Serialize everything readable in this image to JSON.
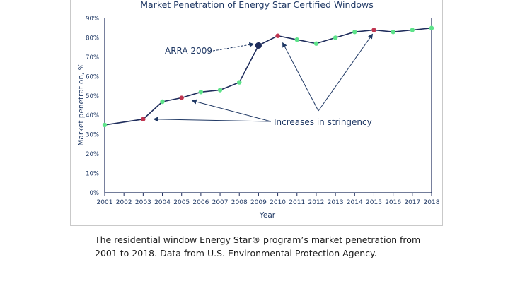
{
  "chart_data": {
    "type": "line",
    "title": "Market Penetration of Energy Star Certified Windows",
    "xlabel": "Year",
    "ylabel": "Market penetration, %",
    "ylim": [
      0,
      90
    ],
    "yticks": [
      "0%",
      "10%",
      "20%",
      "30%",
      "40%",
      "50%",
      "60%",
      "70%",
      "80%",
      "90%"
    ],
    "x": [
      2001,
      2002,
      2003,
      2004,
      2005,
      2006,
      2007,
      2008,
      2009,
      2010,
      2011,
      2012,
      2013,
      2014,
      2015,
      2016,
      2017,
      2018
    ],
    "xticks": [
      "2001",
      "2002",
      "2003",
      "2004",
      "2005",
      "2006",
      "2007",
      "2008",
      "2009",
      "2010",
      "2011",
      "2012",
      "2013",
      "2014",
      "2015",
      "2016",
      "2017",
      "2018"
    ],
    "series": [
      {
        "name": "Market penetration",
        "points": [
          {
            "x": 2001,
            "y": 35,
            "kind": "regular"
          },
          {
            "x": 2003,
            "y": 38,
            "kind": "stringency"
          },
          {
            "x": 2004,
            "y": 47,
            "kind": "regular"
          },
          {
            "x": 2005,
            "y": 49,
            "kind": "stringency"
          },
          {
            "x": 2006,
            "y": 52,
            "kind": "regular"
          },
          {
            "x": 2007,
            "y": 53,
            "kind": "regular"
          },
          {
            "x": 2008,
            "y": 57,
            "kind": "regular"
          },
          {
            "x": 2009,
            "y": 76,
            "kind": "arra"
          },
          {
            "x": 2010,
            "y": 81,
            "kind": "stringency"
          },
          {
            "x": 2011,
            "y": 79,
            "kind": "regular"
          },
          {
            "x": 2012,
            "y": 77,
            "kind": "regular"
          },
          {
            "x": 2013,
            "y": 80,
            "kind": "regular"
          },
          {
            "x": 2014,
            "y": 83,
            "kind": "regular"
          },
          {
            "x": 2015,
            "y": 84,
            "kind": "stringency"
          },
          {
            "x": 2016,
            "y": 83,
            "kind": "regular"
          },
          {
            "x": 2017,
            "y": 84,
            "kind": "regular"
          },
          {
            "x": 2018,
            "y": 85,
            "kind": "regular"
          }
        ]
      }
    ],
    "annotations": [
      {
        "text": "ARRA 2009",
        "target_years": [
          2009
        ]
      },
      {
        "text": "Increases in stringency",
        "target_years": [
          2003,
          2005,
          2010,
          2015
        ]
      }
    ],
    "colors": {
      "line": "#1f2d5c",
      "regular": "#5ee38a",
      "stringency": "#c0344f",
      "arra": "#1f2d5c",
      "text": "#1f3864",
      "axis": "#1f2d5c"
    }
  },
  "caption": "The residential window Energy Star® program’s market penetration from 2001 to 2018. Data from U.S. Environmental Protection Agency."
}
